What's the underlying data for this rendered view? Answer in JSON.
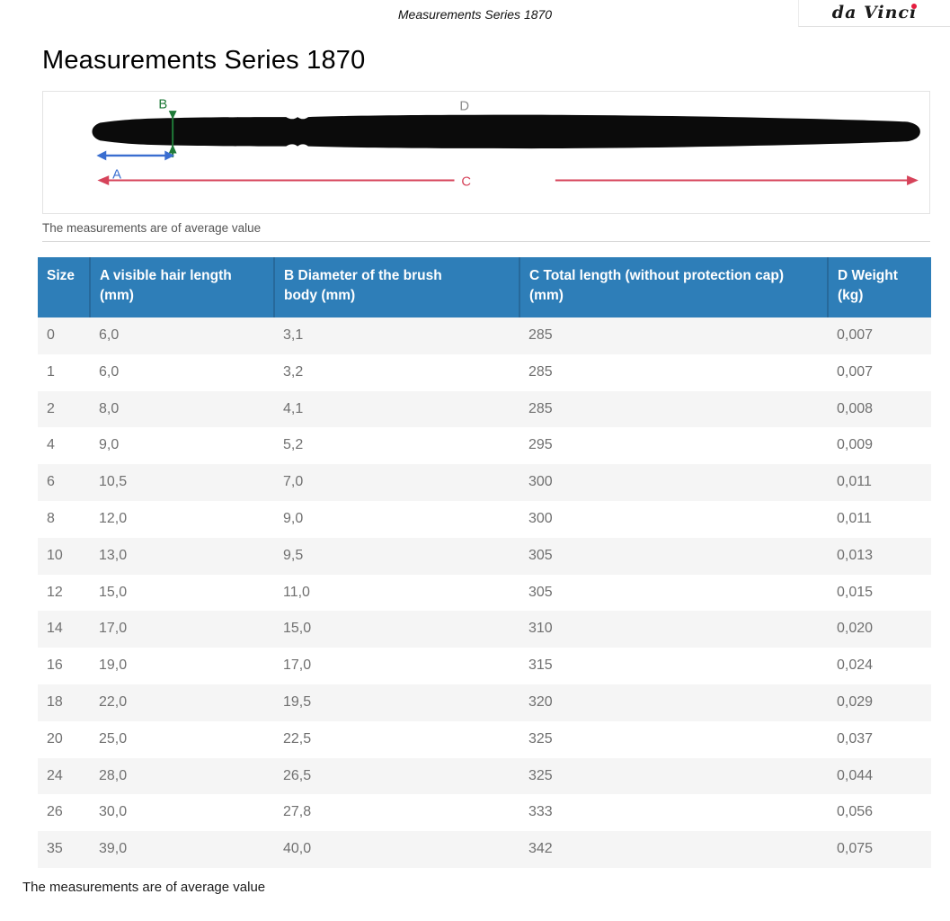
{
  "top_bar": {
    "doc_title": "Measurements Series 1870",
    "logo_text": "da Vinci"
  },
  "page": {
    "title": "Measurements Series 1870",
    "caption": "The measurements are of average value",
    "footer_note": "The measurements are of average value"
  },
  "diagram": {
    "labels": {
      "a": "A",
      "b": "B",
      "c": "C",
      "d": "D"
    },
    "colors": {
      "a": "#3a6ed0",
      "b": "#1f7a38",
      "c": "#d6435a",
      "d": "#8b8b8b",
      "brush": "#0b0b0b"
    }
  },
  "table": {
    "header_bg": "#2e7eb8",
    "columns": [
      "Size",
      "A visible hair length (mm)",
      "B Diameter of the brush body (mm)",
      "C Total length (without protection cap) (mm)",
      "D Weight (kg)"
    ],
    "rows": [
      [
        "0",
        "6,0",
        "3,1",
        "285",
        "0,007"
      ],
      [
        "1",
        "6,0",
        "3,2",
        "285",
        "0,007"
      ],
      [
        "2",
        "8,0",
        "4,1",
        "285",
        "0,008"
      ],
      [
        "4",
        "9,0",
        "5,2",
        "295",
        "0,009"
      ],
      [
        "6",
        "10,5",
        "7,0",
        "300",
        "0,011"
      ],
      [
        "8",
        "12,0",
        "9,0",
        "300",
        "0,011"
      ],
      [
        "10",
        "13,0",
        "9,5",
        "305",
        "0,013"
      ],
      [
        "12",
        "15,0",
        "11,0",
        "305",
        "0,015"
      ],
      [
        "14",
        "17,0",
        "15,0",
        "310",
        "0,020"
      ],
      [
        "16",
        "19,0",
        "17,0",
        "315",
        "0,024"
      ],
      [
        "18",
        "22,0",
        "19,5",
        "320",
        "0,029"
      ],
      [
        "20",
        "25,0",
        "22,5",
        "325",
        "0,037"
      ],
      [
        "24",
        "28,0",
        "26,5",
        "325",
        "0,044"
      ],
      [
        "26",
        "30,0",
        "27,8",
        "333",
        "0,056"
      ],
      [
        "35",
        "39,0",
        "40,0",
        "342",
        "0,075"
      ]
    ]
  }
}
